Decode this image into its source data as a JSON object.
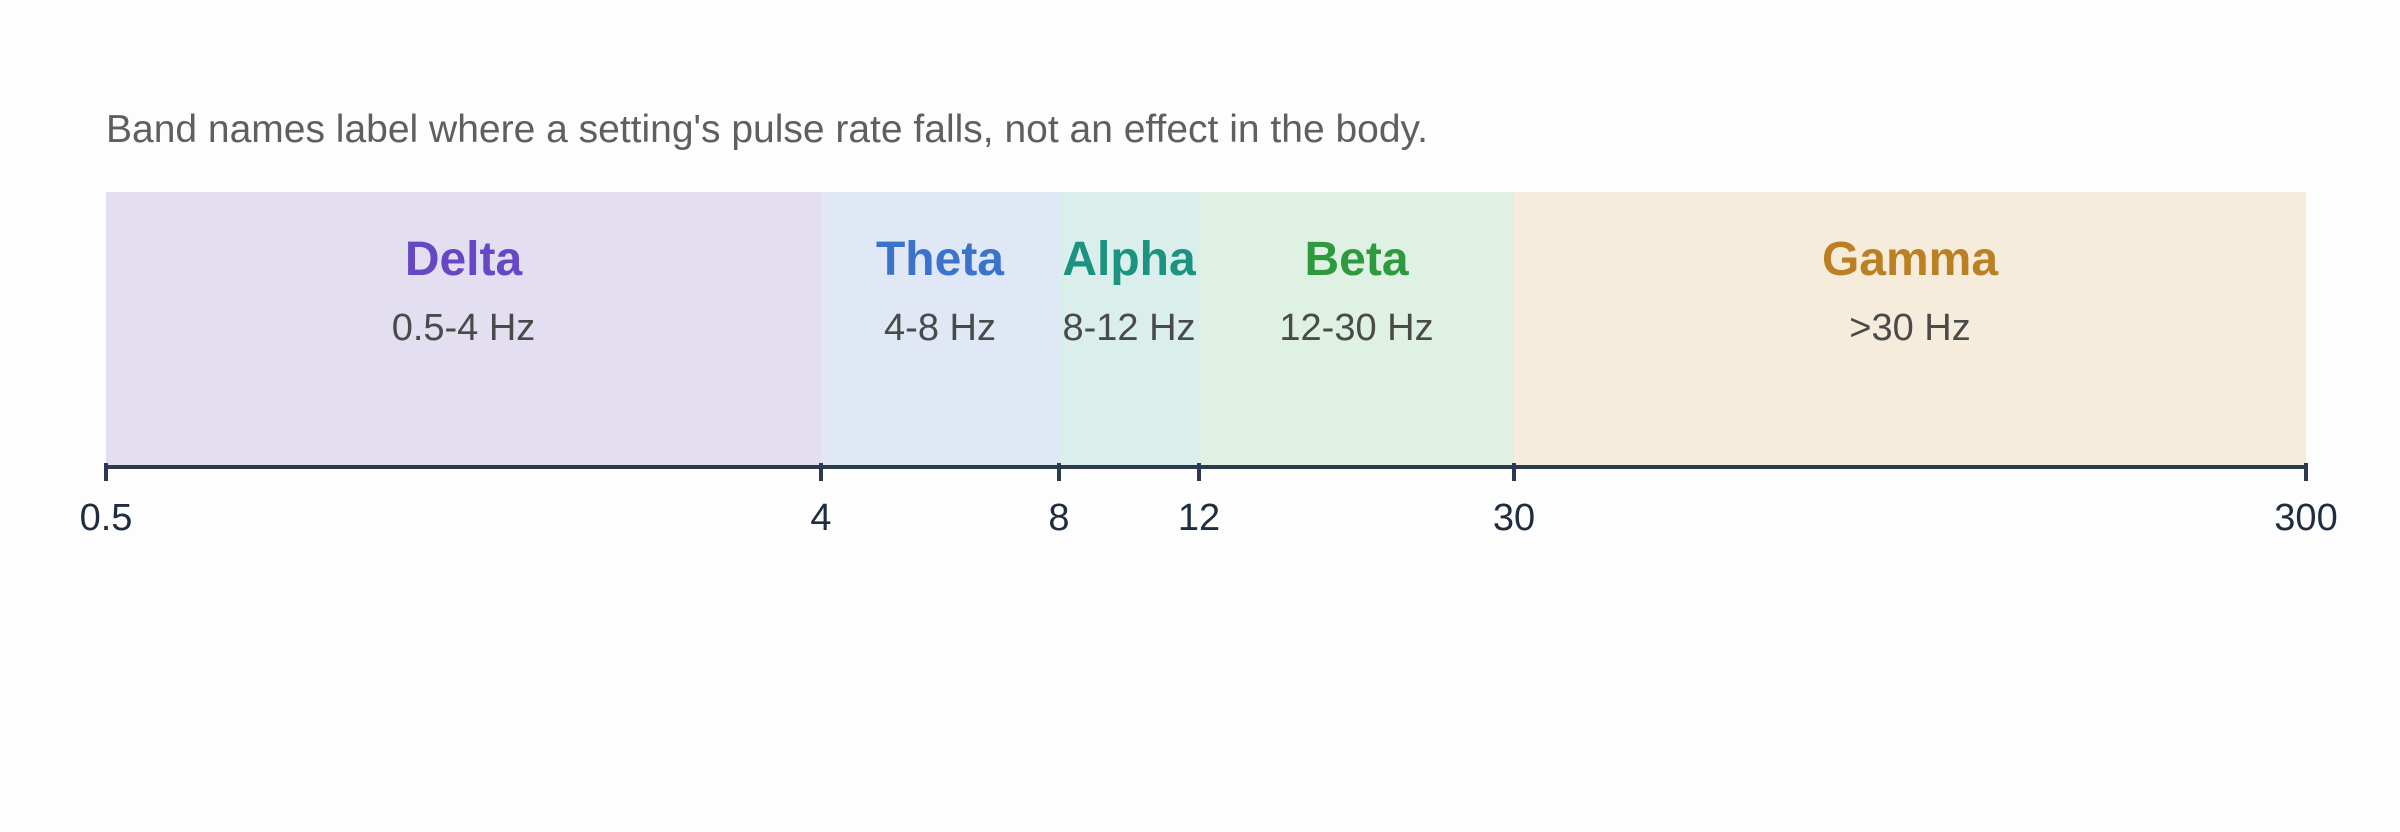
{
  "caption": "Band names label where a setting's pulse rate falls, not an effect in the body.",
  "bands": [
    {
      "name": "Delta",
      "range": "0.5-4 Hz",
      "from": 0.5,
      "to": 4,
      "color": "#6648c4",
      "fill": "#e3dff1"
    },
    {
      "name": "Theta",
      "range": "4-8 Hz",
      "from": 4,
      "to": 8,
      "color": "#3a73c9",
      "fill": "#dfe8f4"
    },
    {
      "name": "Alpha",
      "range": "8-12 Hz",
      "from": 8,
      "to": 12,
      "color": "#1c9380",
      "fill": "#daefec"
    },
    {
      "name": "Beta",
      "range": "12-30 Hz",
      "from": 12,
      "to": 30,
      "color": "#2e9a40",
      "fill": "#dff1e2"
    },
    {
      "name": "Gamma",
      "range": ">30 Hz",
      "from": 30,
      "to": 300,
      "color": "#bb8024",
      "fill": "#f6ecdc"
    }
  ],
  "axis": {
    "ticks": [
      {
        "value": 0.5,
        "label": "0.5"
      },
      {
        "value": 4,
        "label": "4"
      },
      {
        "value": 8,
        "label": "8"
      },
      {
        "value": 12,
        "label": "12"
      },
      {
        "value": 30,
        "label": "30"
      },
      {
        "value": 300,
        "label": "300"
      }
    ],
    "color": "#2b3a4f"
  }
}
